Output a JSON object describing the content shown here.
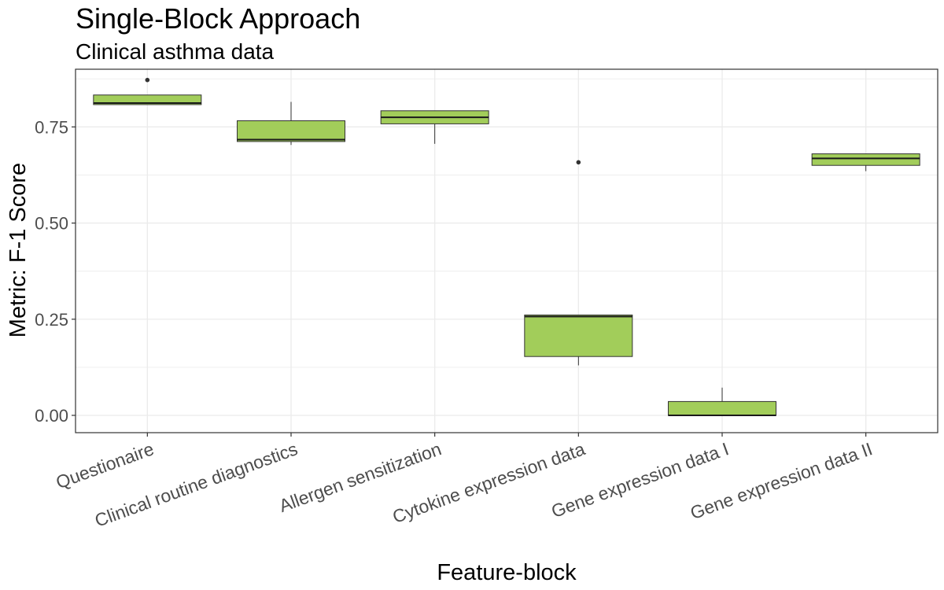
{
  "chart_data": {
    "type": "boxplot",
    "title": "Single-Block Approach",
    "subtitle": "Clinical asthma data",
    "xlabel": "Feature-block",
    "ylabel": "Metric: F-1 Score",
    "ylim": [
      -0.045,
      0.9
    ],
    "yticks": [
      0.0,
      0.25,
      0.5,
      0.75
    ],
    "ytick_labels": [
      "0.00",
      "0.25",
      "0.50",
      "0.75"
    ],
    "grid": true,
    "fill_color": "#a2cd5a",
    "categories": [
      "Questionaire",
      "Clinical routine diagnostics",
      "Allergen sensitization",
      "Cytokine expression data",
      "Gene expression data I",
      "Gene expression data II"
    ],
    "boxes": [
      {
        "min": 0.808,
        "q1": 0.808,
        "median": 0.812,
        "q3": 0.833,
        "max": 0.833,
        "outliers": [
          0.872
        ]
      },
      {
        "min": 0.703,
        "q1": 0.712,
        "median": 0.717,
        "q3": 0.766,
        "max": 0.815,
        "outliers": []
      },
      {
        "min": 0.706,
        "q1": 0.758,
        "median": 0.775,
        "q3": 0.792,
        "max": 0.792,
        "outliers": []
      },
      {
        "min": 0.13,
        "q1": 0.153,
        "median": 0.257,
        "q3": 0.261,
        "max": 0.261,
        "outliers": [
          0.658
        ]
      },
      {
        "min": 0.0,
        "q1": 0.0,
        "median": 0.0,
        "q3": 0.036,
        "max": 0.072,
        "outliers": []
      },
      {
        "min": 0.635,
        "q1": 0.65,
        "median": 0.668,
        "q3": 0.68,
        "max": 0.68,
        "outliers": []
      }
    ]
  }
}
